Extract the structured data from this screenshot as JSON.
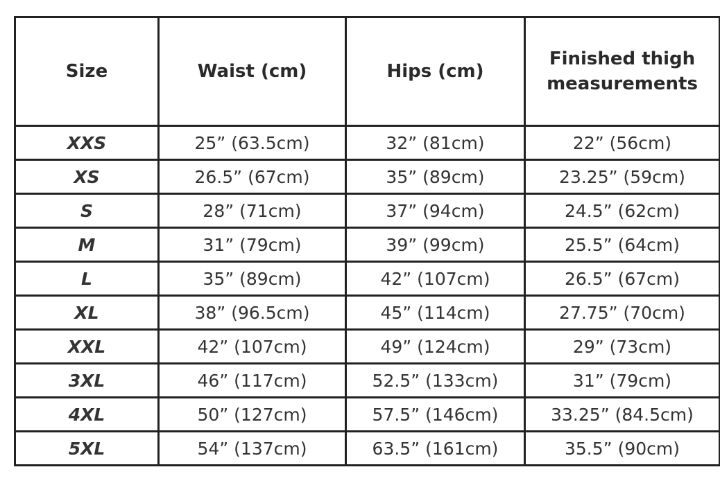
{
  "table": {
    "header": [
      "Size",
      "Waist (cm)",
      "Hips (cm)",
      "Finished thigh measurements"
    ],
    "rows": [
      [
        "XXS",
        "25” (63.5cm)",
        "32” (81cm)",
        "22” (56cm)"
      ],
      [
        "XS",
        "26.5” (67cm)",
        "35” (89cm)",
        "23.25” (59cm)"
      ],
      [
        "S",
        "28” (71cm)",
        "37” (94cm)",
        "24.5” (62cm)"
      ],
      [
        "M",
        "31” (79cm)",
        "39” (99cm)",
        "25.5” (64cm)"
      ],
      [
        "L",
        "35” (89cm)",
        "42” (107cm)",
        "26.5” (67cm)"
      ],
      [
        "XL",
        "38” (96.5cm)",
        "45” (114cm)",
        "27.75” (70cm)"
      ],
      [
        "XXL",
        "42” (107cm)",
        "49” (124cm)",
        "29” (73cm)"
      ],
      [
        "3XL",
        "46” (117cm)",
        "52.5” (133cm)",
        "31” (79cm)"
      ],
      [
        "4XL",
        "50” (127cm)",
        "57.5” (146cm)",
        "33.25” (84.5cm)"
      ],
      [
        "5XL",
        "54” (137cm)",
        "63.5” (161cm)",
        "35.5” (90cm)"
      ]
    ]
  }
}
